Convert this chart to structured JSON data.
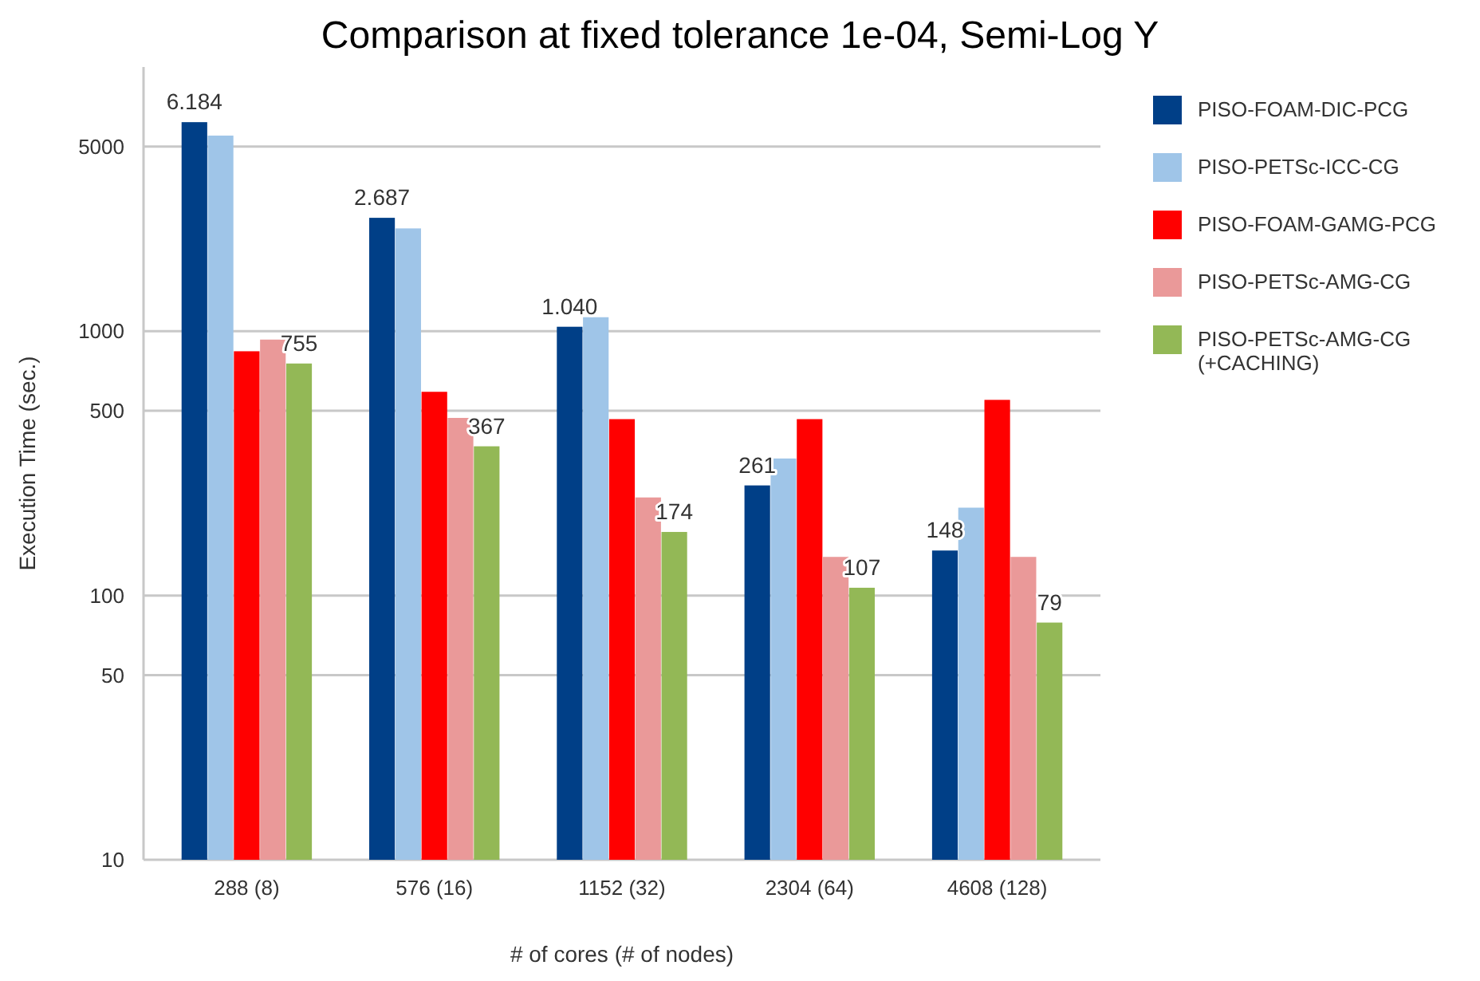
{
  "chart_data": {
    "type": "bar",
    "title": "Comparison at fixed tolerance 1e-04, Semi-Log Y",
    "xlabel": "# of cores (# of nodes)",
    "ylabel": "Execution Time (sec.)",
    "categories": [
      "288 (8)",
      "576 (16)",
      "1152 (32)",
      "2304 (64)",
      "4608 (128)"
    ],
    "series": [
      {
        "name": "PISO-FOAM-DIC-PCG",
        "color": "#003f87",
        "values": [
          6184,
          2687,
          1040,
          261,
          148
        ],
        "value_labels": [
          "6.184",
          "2.687",
          "1.040",
          "261",
          "148"
        ]
      },
      {
        "name": "PISO-PETSc-ICC-CG",
        "color": "#9fc5e8",
        "values": [
          5500,
          2450,
          1130,
          330,
          215
        ]
      },
      {
        "name": "PISO-FOAM-GAMG-PCG",
        "color": "#ff0000",
        "values": [
          840,
          590,
          465,
          465,
          550
        ]
      },
      {
        "name": "PISO-PETSc-AMG-CG",
        "color": "#ea9999",
        "values": [
          930,
          470,
          235,
          140,
          140
        ]
      },
      {
        "name": "PISO-PETSc-AMG-CG (+CACHING)",
        "color": "#93b856",
        "values": [
          755,
          367,
          174,
          107,
          79
        ],
        "value_labels": [
          "755",
          "367",
          "174",
          "107",
          "79"
        ]
      }
    ],
    "ylim": [
      10,
      10000
    ],
    "yticks": [
      10,
      50,
      100,
      500,
      1000,
      5000
    ],
    "log": "y",
    "grid": "y",
    "legend": "right"
  }
}
